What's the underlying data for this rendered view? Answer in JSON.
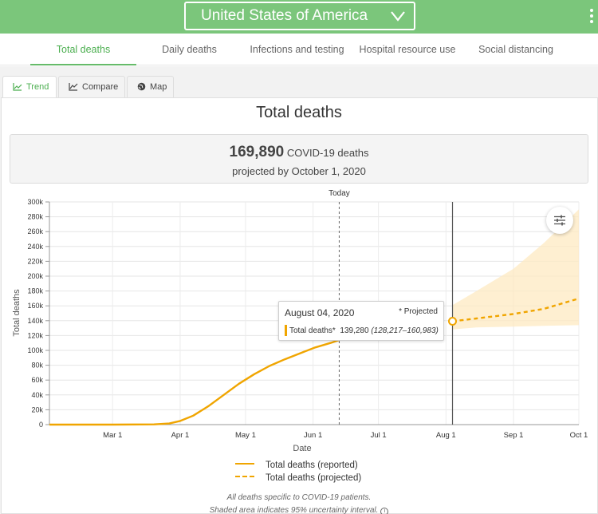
{
  "header": {
    "country": "United States of America"
  },
  "main_tabs": [
    {
      "label": "Total deaths",
      "active": true
    },
    {
      "label": "Daily deaths",
      "active": false
    },
    {
      "label": "Infections and testing",
      "active": false
    },
    {
      "label": "Hospital resource use",
      "active": false
    },
    {
      "label": "Social distancing",
      "active": false
    }
  ],
  "sub_tabs": [
    {
      "label": "Trend",
      "icon": "line-chart-icon",
      "active": true
    },
    {
      "label": "Compare",
      "icon": "compare-chart-icon",
      "active": false
    },
    {
      "label": "Map",
      "icon": "globe-icon",
      "active": false
    }
  ],
  "panel": {
    "title": "Total deaths"
  },
  "summary": {
    "value": "169,890",
    "unit": "COVID-19 deaths",
    "subtitle": "projected by October 1, 2020"
  },
  "tooltip": {
    "date": "August 04, 2020",
    "projected_note": "* Projected",
    "series_label": "Total deaths*",
    "value": "139,280",
    "interval": "(128,217–160,983)"
  },
  "legend": {
    "reported": "Total deaths (reported)",
    "projected": "Total deaths (projected)"
  },
  "footnote": {
    "line1": "All deaths specific to COVID-19 patients.",
    "line2": "Shaded area indicates 95% uncertainty interval."
  },
  "colors": {
    "header_green": "#7bc67b",
    "accent_green": "#4caf50",
    "series_orange": "#f0a500",
    "band_fill": "#fde9c2"
  },
  "chart_data": {
    "type": "line",
    "xlabel": "Date",
    "ylabel": "Total deaths",
    "x_range": [
      "2020-02-01",
      "2020-10-01"
    ],
    "ylim": [
      0,
      300000
    ],
    "y_ticks": [
      0,
      20000,
      40000,
      60000,
      80000,
      100000,
      120000,
      140000,
      160000,
      180000,
      200000,
      220000,
      240000,
      260000,
      280000,
      300000
    ],
    "y_tick_labels": [
      "0",
      "20k",
      "40k",
      "60k",
      "80k",
      "100k",
      "120k",
      "140k",
      "160k",
      "180k",
      "200k",
      "220k",
      "240k",
      "260k",
      "280k",
      "300k"
    ],
    "x_ticks": [
      {
        "date": "2020-03-01",
        "label": "Mar 1"
      },
      {
        "date": "2020-04-01",
        "label": "Apr 1"
      },
      {
        "date": "2020-05-01",
        "label": "May 1"
      },
      {
        "date": "2020-06-01",
        "label": "Jun 1"
      },
      {
        "date": "2020-07-01",
        "label": "Jul 1"
      },
      {
        "date": "2020-08-01",
        "label": "Aug 1"
      },
      {
        "date": "2020-09-01",
        "label": "Sep 1"
      },
      {
        "date": "2020-10-01",
        "label": "Oct 1"
      }
    ],
    "today": {
      "date": "2020-06-13",
      "label": "Today"
    },
    "hover_date": "2020-08-04",
    "grid": true,
    "series": [
      {
        "name": "Total deaths (reported)",
        "style": "solid",
        "points": [
          {
            "x": "2020-02-01",
            "y": 0
          },
          {
            "x": "2020-03-01",
            "y": 50
          },
          {
            "x": "2020-03-20",
            "y": 300
          },
          {
            "x": "2020-03-27",
            "y": 1500
          },
          {
            "x": "2020-04-01",
            "y": 5000
          },
          {
            "x": "2020-04-07",
            "y": 12000
          },
          {
            "x": "2020-04-14",
            "y": 25000
          },
          {
            "x": "2020-04-21",
            "y": 40000
          },
          {
            "x": "2020-04-28",
            "y": 55000
          },
          {
            "x": "2020-05-05",
            "y": 68000
          },
          {
            "x": "2020-05-12",
            "y": 79000
          },
          {
            "x": "2020-05-19",
            "y": 88000
          },
          {
            "x": "2020-05-26",
            "y": 96000
          },
          {
            "x": "2020-06-02",
            "y": 104000
          },
          {
            "x": "2020-06-09",
            "y": 110000
          },
          {
            "x": "2020-06-13",
            "y": 114000
          }
        ]
      },
      {
        "name": "Total deaths (projected)",
        "style": "dashed",
        "points": [
          {
            "x": "2020-08-04",
            "y": 139280
          },
          {
            "x": "2020-08-15",
            "y": 143000
          },
          {
            "x": "2020-09-01",
            "y": 149000
          },
          {
            "x": "2020-09-15",
            "y": 156000
          },
          {
            "x": "2020-10-01",
            "y": 169890
          }
        ]
      }
    ],
    "uncertainty_band": [
      {
        "x": "2020-08-04",
        "lower": 128217,
        "upper": 160983
      },
      {
        "x": "2020-08-15",
        "lower": 131000,
        "upper": 180000
      },
      {
        "x": "2020-09-01",
        "lower": 132000,
        "upper": 210000
      },
      {
        "x": "2020-09-15",
        "lower": 133000,
        "upper": 245000
      },
      {
        "x": "2020-10-01",
        "lower": 134000,
        "upper": 290000
      }
    ]
  }
}
